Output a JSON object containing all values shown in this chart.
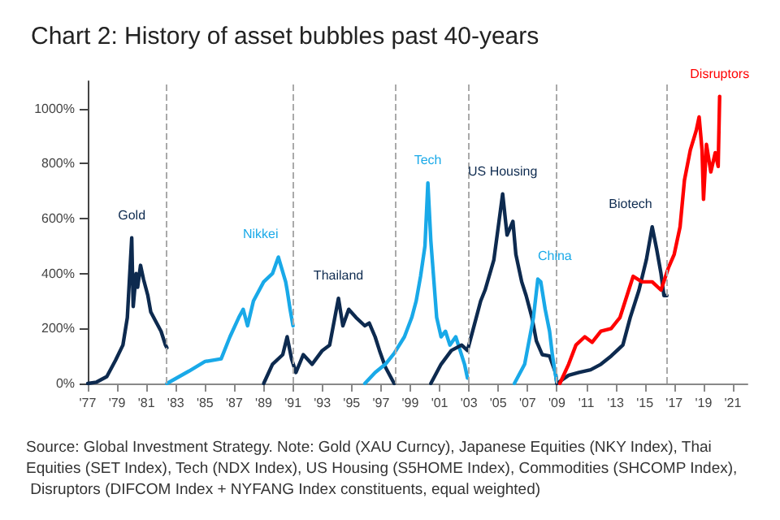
{
  "chart_data": {
    "type": "line",
    "title": "Chart 2: History of asset bubbles past 40-years",
    "marker": "none",
    "line_style": "solid",
    "grid": false,
    "xlim": [
      1977,
      2022
    ],
    "xticks": [
      {
        "value": 1977,
        "label": "'77"
      },
      {
        "value": 1979,
        "label": "'79"
      },
      {
        "value": 1981,
        "label": "'81"
      },
      {
        "value": 1983,
        "label": "'83"
      },
      {
        "value": 1985,
        "label": "'85"
      },
      {
        "value": 1987,
        "label": "'87"
      },
      {
        "value": 1989,
        "label": "'89"
      },
      {
        "value": 1991,
        "label": "'91"
      },
      {
        "value": 1993,
        "label": "'93"
      },
      {
        "value": 1995,
        "label": "'95"
      },
      {
        "value": 1997,
        "label": "'97"
      },
      {
        "value": 1999,
        "label": "'99"
      },
      {
        "value": 2001,
        "label": "'01"
      },
      {
        "value": 2003,
        "label": "'03"
      },
      {
        "value": 2005,
        "label": "'05"
      },
      {
        "value": 2007,
        "label": "'07"
      },
      {
        "value": 2009,
        "label": "'09"
      },
      {
        "value": 2011,
        "label": "'11"
      },
      {
        "value": 2013,
        "label": "'13"
      },
      {
        "value": 2015,
        "label": "'15"
      },
      {
        "value": 2017,
        "label": "'17"
      },
      {
        "value": 2019,
        "label": "'19"
      },
      {
        "value": 2021,
        "label": "'21"
      }
    ],
    "ylim": [
      0,
      1100
    ],
    "yticks": [
      {
        "value": 0,
        "label": "0%"
      },
      {
        "value": 200,
        "label": "200%"
      },
      {
        "value": 400,
        "label": "400%"
      },
      {
        "value": 600,
        "label": "600%"
      },
      {
        "value": 800,
        "label": "800%"
      },
      {
        "value": 1000,
        "label": "1000%"
      }
    ],
    "series": [
      {
        "name": "Gold",
        "color": "#0d2a4f",
        "x": [
          1977.0,
          1977.6,
          1978.3,
          1978.9,
          1979.4,
          1979.7,
          1980.0,
          1980.1,
          1980.3,
          1980.4,
          1980.6,
          1980.8,
          1981.1,
          1981.3,
          1981.6,
          1982.0,
          1982.3,
          1982.4
        ],
        "values": [
          0,
          5,
          25,
          85,
          140,
          240,
          530,
          280,
          400,
          350,
          430,
          380,
          320,
          260,
          230,
          190,
          140,
          130
        ]
      },
      {
        "name": "Nikkei",
        "color": "#19a9e8",
        "x": [
          1982.4,
          1983.9,
          1985.0,
          1986.1,
          1986.7,
          1987.3,
          1987.6,
          1987.9,
          1988.3,
          1989.0,
          1989.6,
          1990.0,
          1990.5,
          1990.6,
          1990.8,
          1991.0
        ],
        "values": [
          0,
          45,
          80,
          90,
          170,
          240,
          270,
          210,
          300,
          370,
          400,
          460,
          370,
          340,
          270,
          210
        ]
      },
      {
        "name": "Thailand",
        "color": "#0d2a4f",
        "x": [
          1989.0,
          1989.6,
          1990.3,
          1990.6,
          1990.9,
          1991.2,
          1991.7,
          1992.3,
          1993.0,
          1993.5,
          1994.1,
          1994.4,
          1994.8,
          1995.3,
          1995.9,
          1996.2,
          1996.6,
          1996.9,
          1997.3,
          1997.7,
          1997.9
        ],
        "values": [
          0,
          70,
          105,
          170,
          90,
          40,
          105,
          70,
          120,
          140,
          310,
          210,
          270,
          240,
          210,
          220,
          170,
          120,
          60,
          20,
          0
        ]
      },
      {
        "name": "Tech",
        "color": "#19a9e8",
        "x": [
          1995.9,
          1996.6,
          1997.3,
          1997.9,
          1998.6,
          1999.1,
          1999.4,
          1999.7,
          2000.0,
          2000.2,
          2000.4,
          2000.5,
          2000.8,
          2001.1,
          2001.4,
          2001.7,
          2002.1,
          2002.4,
          2002.7,
          2002.9
        ],
        "values": [
          0,
          40,
          70,
          110,
          170,
          240,
          300,
          390,
          500,
          730,
          520,
          450,
          240,
          170,
          190,
          140,
          170,
          120,
          70,
          20
        ]
      },
      {
        "name": "US Housing",
        "color": "#0d2a4f",
        "x": [
          2000.4,
          2001.1,
          2001.8,
          2002.5,
          2002.9,
          2003.4,
          2003.8,
          2004.1,
          2004.7,
          2005.0,
          2005.3,
          2005.6,
          2006.0,
          2006.2,
          2006.6,
          2006.9,
          2007.3,
          2007.6,
          2008.0,
          2008.5,
          2008.9,
          2009.0
        ],
        "values": [
          0,
          70,
          120,
          140,
          120,
          220,
          300,
          340,
          450,
          570,
          690,
          540,
          590,
          470,
          370,
          320,
          240,
          155,
          105,
          100,
          40,
          0
        ]
      },
      {
        "name": "China",
        "color": "#19a9e8",
        "x": [
          2006.1,
          2006.8,
          2007.4,
          2007.7,
          2007.9,
          2008.2,
          2008.5,
          2008.7,
          2009.0
        ],
        "values": [
          0,
          70,
          240,
          380,
          370,
          270,
          190,
          100,
          0
        ]
      },
      {
        "name": "Biotech",
        "color": "#0d2a4f",
        "x": [
          2009.0,
          2009.8,
          2010.5,
          2011.3,
          2012.0,
          2012.7,
          2013.5,
          2014.0,
          2014.6,
          2015.1,
          2015.5,
          2015.8,
          2016.1,
          2016.3,
          2016.5
        ],
        "values": [
          0,
          30,
          40,
          50,
          70,
          100,
          140,
          240,
          340,
          450,
          570,
          490,
          400,
          320,
          320
        ]
      },
      {
        "name": "Disruptors",
        "color": "#ff0000",
        "x": [
          2009.2,
          2009.8,
          2010.3,
          2010.9,
          2011.4,
          2012.0,
          2012.7,
          2013.3,
          2013.9,
          2014.2,
          2014.8,
          2015.5,
          2016.1,
          2016.6,
          2017.0,
          2017.4,
          2017.7,
          2018.1,
          2018.5,
          2018.7,
          2018.9,
          2019.0,
          2019.2,
          2019.5,
          2019.8,
          2020.0,
          2020.1
        ],
        "values": [
          0,
          70,
          140,
          170,
          150,
          190,
          200,
          240,
          340,
          390,
          370,
          370,
          340,
          420,
          470,
          570,
          740,
          850,
          920,
          970,
          850,
          670,
          870,
          770,
          840,
          790,
          1045
        ]
      }
    ],
    "ref_lines": [
      {
        "axis": "x",
        "value": 1982.4,
        "color": "#aaaaaa",
        "line_style": "dashed"
      },
      {
        "axis": "x",
        "value": 1991.0,
        "color": "#aaaaaa",
        "line_style": "dashed"
      },
      {
        "axis": "x",
        "value": 1998.0,
        "color": "#aaaaaa",
        "line_style": "dashed"
      },
      {
        "axis": "x",
        "value": 2003.0,
        "color": "#aaaaaa",
        "line_style": "dashed"
      },
      {
        "axis": "x",
        "value": 2009.0,
        "color": "#aaaaaa",
        "line_style": "dashed"
      },
      {
        "axis": "x",
        "value": 2016.5,
        "color": "#aaaaaa",
        "line_style": "dashed"
      }
    ],
    "annotations": [
      "Source: Global Investment Strategy. Note: Gold (XAU Curncy), Japanese Equities (NKY Index), Thai Equities (SET Index), Tech (NDX Index), US Housing (S5HOME Index), Commodities (SHCOMP Index), Disruptors (DIFCOM Index + NYFANG Index constituents, equal weighted)"
    ]
  }
}
